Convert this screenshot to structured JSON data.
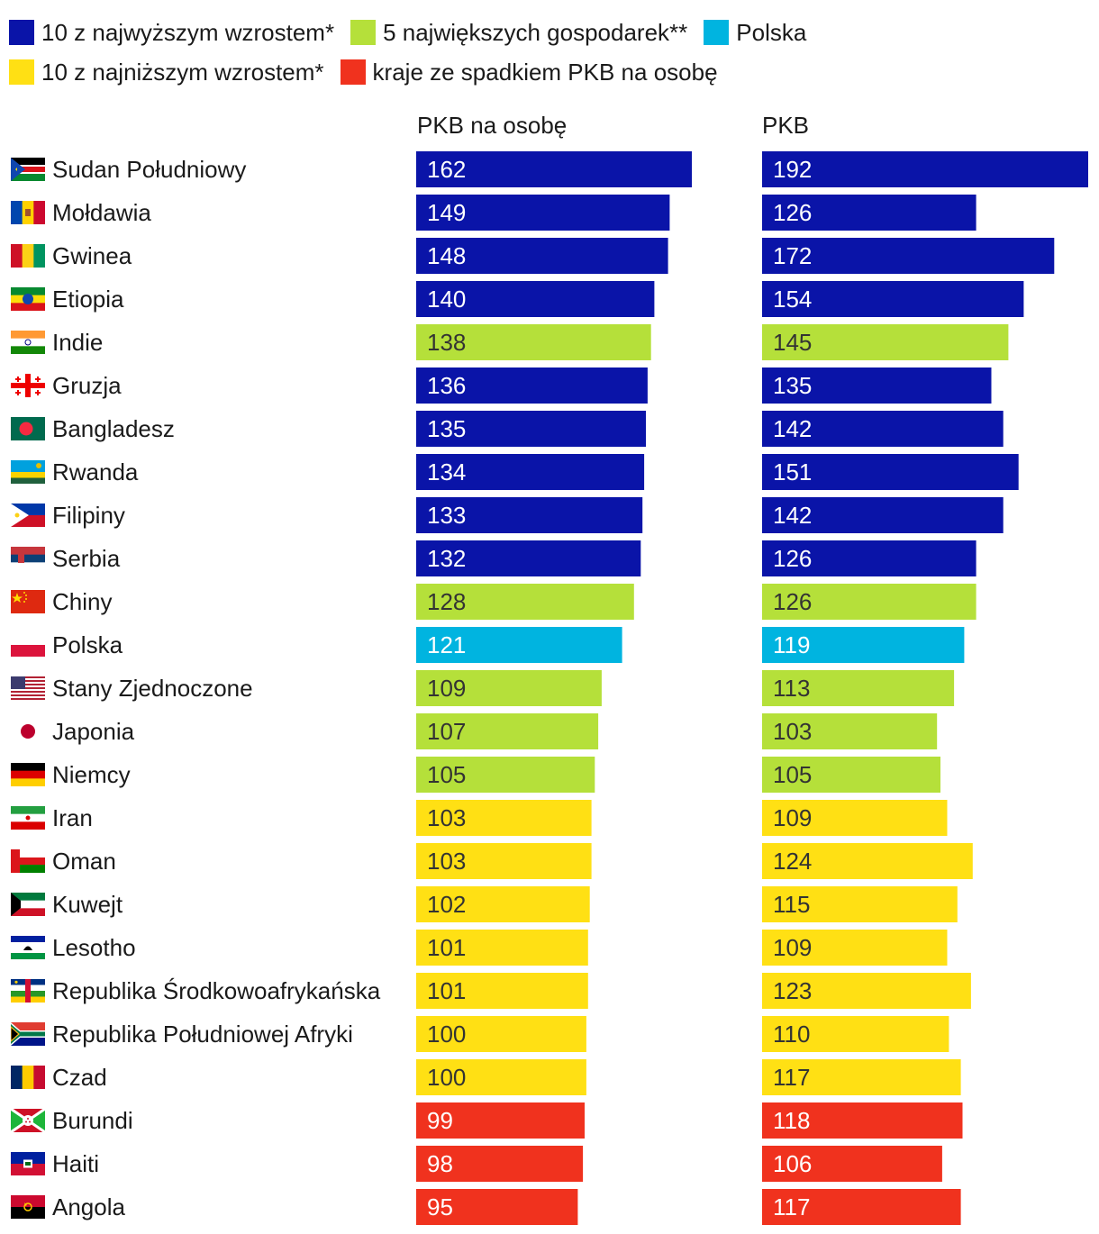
{
  "legend": [
    {
      "label": "10 z najwyższym wzrostem*",
      "color": "#0a14a8"
    },
    {
      "label": "5 największych gospodarek**",
      "color": "#b5e03a"
    },
    {
      "label": "Polska",
      "color": "#00b4e0"
    },
    {
      "label": "10 z najniższym wzrostem*",
      "color": "#ffe014"
    },
    {
      "label": "kraje ze spadkiem PKB na osobę",
      "color": "#f0321e"
    }
  ],
  "chart_data": {
    "type": "bar",
    "orientation": "horizontal",
    "title": "",
    "series_titles": [
      "PKB na osobę",
      "PKB"
    ],
    "colors": {
      "top": "#0a14a8",
      "big5": "#b5e03a",
      "pl": "#00b4e0",
      "low": "#ffe014",
      "decline": "#f0321e"
    },
    "rows": [
      {
        "country": "Sudan Południowy",
        "flag": "south-sudan",
        "group": "top",
        "gdp_per_capita": 162,
        "gdp": 192
      },
      {
        "country": "Mołdawia",
        "flag": "moldova",
        "group": "top",
        "gdp_per_capita": 149,
        "gdp": 126
      },
      {
        "country": "Gwinea",
        "flag": "guinea",
        "group": "top",
        "gdp_per_capita": 148,
        "gdp": 172
      },
      {
        "country": "Etiopia",
        "flag": "ethiopia",
        "group": "top",
        "gdp_per_capita": 140,
        "gdp": 154
      },
      {
        "country": "Indie",
        "flag": "india",
        "group": "big5",
        "gdp_per_capita": 138,
        "gdp": 145
      },
      {
        "country": "Gruzja",
        "flag": "georgia",
        "group": "top",
        "gdp_per_capita": 136,
        "gdp": 135
      },
      {
        "country": "Bangladesz",
        "flag": "bangladesh",
        "group": "top",
        "gdp_per_capita": 135,
        "gdp": 142
      },
      {
        "country": "Rwanda",
        "flag": "rwanda",
        "group": "top",
        "gdp_per_capita": 134,
        "gdp": 151
      },
      {
        "country": "Filipiny",
        "flag": "philippines",
        "group": "top",
        "gdp_per_capita": 133,
        "gdp": 142
      },
      {
        "country": "Serbia",
        "flag": "serbia",
        "group": "top",
        "gdp_per_capita": 132,
        "gdp": 126
      },
      {
        "country": "Chiny",
        "flag": "china",
        "group": "big5",
        "gdp_per_capita": 128,
        "gdp": 126
      },
      {
        "country": "Polska",
        "flag": "poland",
        "group": "pl",
        "gdp_per_capita": 121,
        "gdp": 119
      },
      {
        "country": "Stany Zjednoczone",
        "flag": "usa",
        "group": "big5",
        "gdp_per_capita": 109,
        "gdp": 113
      },
      {
        "country": "Japonia",
        "flag": "japan",
        "group": "big5",
        "gdp_per_capita": 107,
        "gdp": 103
      },
      {
        "country": "Niemcy",
        "flag": "germany",
        "group": "big5",
        "gdp_per_capita": 105,
        "gdp": 105
      },
      {
        "country": "Iran",
        "flag": "iran",
        "group": "low",
        "gdp_per_capita": 103,
        "gdp": 109
      },
      {
        "country": "Oman",
        "flag": "oman",
        "group": "low",
        "gdp_per_capita": 103,
        "gdp": 124
      },
      {
        "country": "Kuwejt",
        "flag": "kuwait",
        "group": "low",
        "gdp_per_capita": 102,
        "gdp": 115
      },
      {
        "country": "Lesotho",
        "flag": "lesotho",
        "group": "low",
        "gdp_per_capita": 101,
        "gdp": 109
      },
      {
        "country": "Republika Środkowoafrykańska",
        "flag": "car",
        "group": "low",
        "gdp_per_capita": 101,
        "gdp": 123
      },
      {
        "country": "Republika Południowej Afryki",
        "flag": "south-africa",
        "group": "low",
        "gdp_per_capita": 100,
        "gdp": 110
      },
      {
        "country": "Czad",
        "flag": "chad",
        "group": "low",
        "gdp_per_capita": 100,
        "gdp": 117
      },
      {
        "country": "Burundi",
        "flag": "burundi",
        "group": "decline",
        "gdp_per_capita": 99,
        "gdp": 118
      },
      {
        "country": "Haiti",
        "flag": "haiti",
        "group": "decline",
        "gdp_per_capita": 98,
        "gdp": 106
      },
      {
        "country": "Angola",
        "flag": "angola",
        "group": "decline",
        "gdp_per_capita": 95,
        "gdp": 117
      }
    ]
  }
}
